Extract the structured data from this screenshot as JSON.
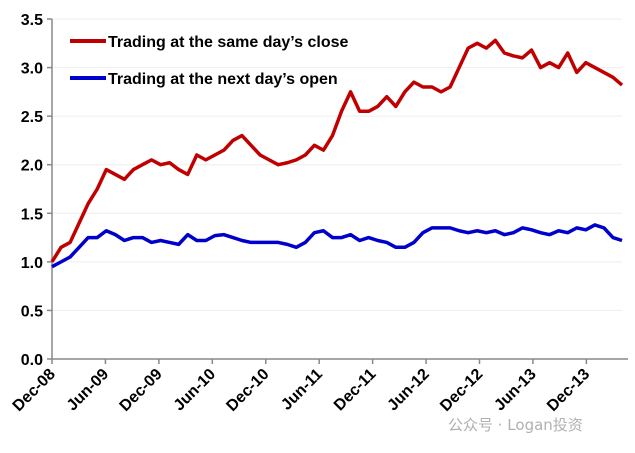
{
  "chart_data": {
    "type": "line",
    "title": "",
    "xlabel": "",
    "ylabel": "",
    "ylim": [
      0,
      3.5
    ],
    "yticks": [
      "0.0",
      "0.5",
      "1.0",
      "1.5",
      "2.0",
      "2.5",
      "3.0",
      "3.5"
    ],
    "xtick_labels": [
      "Dec-08",
      "Jun-09",
      "Dec-09",
      "Jun-10",
      "Dec-10",
      "Jun-11",
      "Dec-11",
      "Jun-12",
      "Dec-12",
      "Jun-13",
      "Dec-13"
    ],
    "x_unit": "months since Dec-08",
    "xlim": [
      0,
      64
    ],
    "grid": true,
    "legend_position": "top-left",
    "series": [
      {
        "name": "Trading at the same day’s close",
        "color": "#c00000",
        "values": [
          1.0,
          1.15,
          1.2,
          1.4,
          1.6,
          1.75,
          1.95,
          1.9,
          1.85,
          1.95,
          2.0,
          2.05,
          2.0,
          2.02,
          1.95,
          1.9,
          2.1,
          2.05,
          2.1,
          2.15,
          2.25,
          2.3,
          2.2,
          2.1,
          2.05,
          2.0,
          2.02,
          2.05,
          2.1,
          2.2,
          2.15,
          2.3,
          2.55,
          2.75,
          2.55,
          2.55,
          2.6,
          2.7,
          2.6,
          2.75,
          2.85,
          2.8,
          2.8,
          2.75,
          2.8,
          3.0,
          3.2,
          3.25,
          3.2,
          3.28,
          3.15,
          3.12,
          3.1,
          3.18,
          3.0,
          3.05,
          3.0,
          3.15,
          2.95,
          3.05,
          3.0,
          2.95,
          2.9,
          2.82
        ]
      },
      {
        "name": "Trading at the next day’s open",
        "color": "#0000cc",
        "values": [
          0.95,
          1.0,
          1.05,
          1.15,
          1.25,
          1.25,
          1.32,
          1.28,
          1.22,
          1.25,
          1.25,
          1.2,
          1.22,
          1.2,
          1.18,
          1.28,
          1.22,
          1.22,
          1.27,
          1.28,
          1.25,
          1.22,
          1.2,
          1.2,
          1.2,
          1.2,
          1.18,
          1.15,
          1.2,
          1.3,
          1.32,
          1.25,
          1.25,
          1.28,
          1.22,
          1.25,
          1.22,
          1.2,
          1.15,
          1.15,
          1.2,
          1.3,
          1.35,
          1.35,
          1.35,
          1.32,
          1.3,
          1.32,
          1.3,
          1.32,
          1.28,
          1.3,
          1.35,
          1.33,
          1.3,
          1.28,
          1.32,
          1.3,
          1.35,
          1.33,
          1.38,
          1.35,
          1.25,
          1.22
        ]
      }
    ]
  },
  "watermark": "公众号 · Logan投资"
}
